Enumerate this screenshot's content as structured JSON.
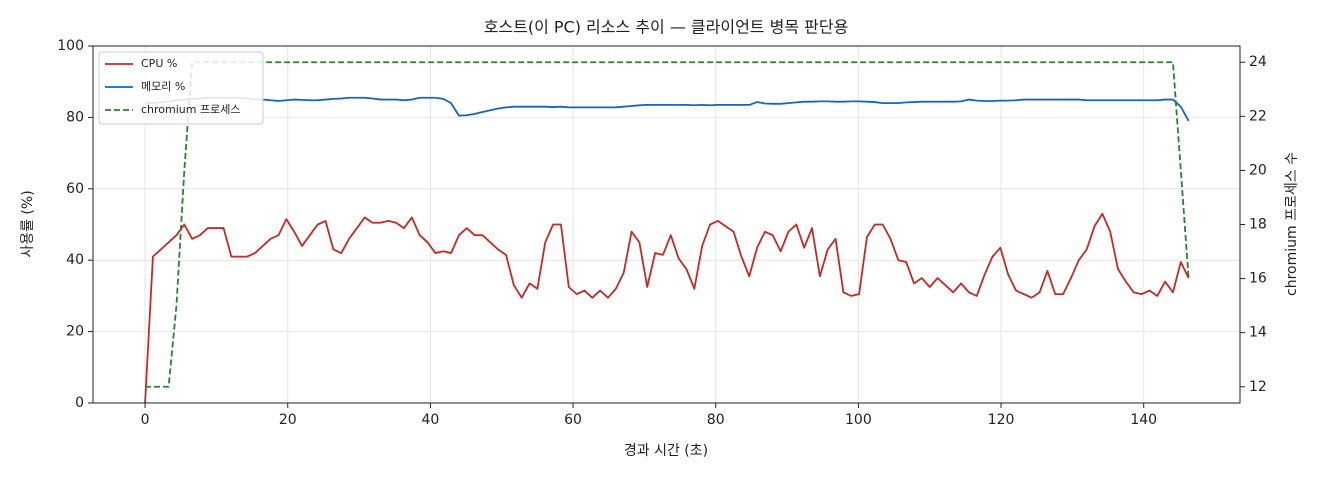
{
  "chart_data": {
    "type": "line",
    "title": "호스트(이 PC) 리소스 추이 — 클라이언트 병목 판단용",
    "xlabel": "경과 시간 (초)",
    "ylabel": "사용률 (%)",
    "y2label": "chromium 프로세스 수",
    "x": [
      0,
      1.1,
      2.2,
      3.3,
      4.4,
      5.5,
      6.6,
      7.7,
      8.8,
      9.9,
      11,
      12.1,
      13.2,
      14.3,
      15.4,
      16.5,
      17.6,
      18.7,
      19.8,
      20.9,
      22,
      23.1,
      24.2,
      25.3,
      26.4,
      27.5,
      28.6,
      29.7,
      30.8,
      31.9,
      33,
      34.1,
      35.2,
      36.3,
      37.4,
      38.5,
      39.6,
      40.7,
      41.8,
      42.9,
      44,
      45.1,
      46.2,
      47.3,
      48.4,
      49.5,
      50.6,
      51.7,
      52.8,
      53.9,
      55,
      56.1,
      57.2,
      58.3,
      59.4,
      60.5,
      61.6,
      62.7,
      63.8,
      64.9,
      66,
      67.1,
      68.2,
      69.3,
      70.4,
      71.5,
      72.6,
      73.7,
      74.8,
      75.9,
      77,
      78.1,
      79.2,
      80.3,
      81.4,
      82.5,
      83.6,
      84.7,
      85.8,
      86.9,
      88,
      89.1,
      90.2,
      91.3,
      92.4,
      93.5,
      94.6,
      95.7,
      96.8,
      97.9,
      99,
      100.1,
      101.2,
      102.3,
      103.4,
      104.5,
      105.6,
      106.7,
      107.8,
      108.9,
      110,
      111.1,
      112.2,
      113.3,
      114.4,
      115.5,
      116.6,
      117.7,
      118.8,
      119.9,
      121,
      122.1,
      123.2,
      124.3,
      125.4,
      126.5,
      127.6,
      128.7,
      129.8,
      130.9,
      132,
      133.1,
      134.2,
      135.3,
      136.4,
      137.5,
      138.6,
      139.7,
      140.8,
      141.9,
      143,
      144.1,
      145.2,
      146.3
    ],
    "series": [
      {
        "name": "CPU %",
        "color": "#c62828",
        "linestyle": "solid",
        "values": [
          0,
          41,
          43,
          45,
          47,
          50,
          46,
          47,
          49,
          49,
          49,
          41,
          41,
          41,
          42,
          44,
          46,
          47,
          51.5,
          48,
          44,
          47,
          50,
          51,
          43,
          42,
          46,
          49,
          52,
          50.5,
          50.5,
          51,
          50.5,
          49,
          52,
          47,
          45,
          42,
          42.5,
          42,
          47,
          49,
          47,
          47,
          45,
          43,
          41.5,
          33,
          29.5,
          33.5,
          32,
          45,
          50,
          50,
          32.5,
          30.5,
          31.5,
          29.5,
          31.5,
          29.5,
          32,
          36.5,
          48,
          45,
          32.5,
          42,
          41.5,
          47,
          40.5,
          37.5,
          32,
          44,
          50,
          51,
          49.5,
          48,
          41,
          35.5,
          43.5,
          48,
          47,
          42.5,
          48,
          50,
          43.5,
          49,
          35.5,
          43,
          46,
          31,
          30,
          30.5,
          46.5,
          50,
          50,
          46,
          40,
          39.5,
          33.5,
          35,
          32.5,
          35,
          33,
          31,
          33.5,
          31,
          30,
          36,
          41,
          43.5,
          36,
          31.5,
          30.5,
          29.5,
          31,
          37,
          30.5,
          30.5,
          35,
          40,
          43,
          49.5,
          53,
          48,
          37.5,
          34,
          31,
          30.5,
          31.5,
          30,
          34,
          31,
          39.5,
          35
        ]
      },
      {
        "name": "메모리 %",
        "color": "#1565c0",
        "linestyle": "solid",
        "values": [
          84,
          84,
          84.2,
          84.5,
          84.8,
          85,
          85.2,
          85.3,
          85.5,
          85.5,
          85.5,
          85.5,
          85.5,
          85.3,
          85,
          85,
          84.8,
          84.6,
          84.8,
          85,
          84.9,
          84.8,
          84.8,
          85,
          85.2,
          85.3,
          85.5,
          85.5,
          85.5,
          85.3,
          85,
          85,
          85,
          84.8,
          85,
          85.5,
          85.5,
          85.5,
          85.2,
          84,
          80.5,
          80.6,
          81,
          81.5,
          82,
          82.5,
          82.8,
          83,
          83,
          83,
          83,
          83,
          82.9,
          83,
          82.8,
          82.8,
          82.8,
          82.8,
          82.8,
          82.8,
          82.8,
          83,
          83.2,
          83.4,
          83.5,
          83.5,
          83.5,
          83.5,
          83.5,
          83.5,
          83.4,
          83.5,
          83.4,
          83.5,
          83.5,
          83.5,
          83.5,
          83.5,
          84.3,
          83.9,
          83.8,
          83.8,
          84,
          84.2,
          84.4,
          84.4,
          84.5,
          84.5,
          84.4,
          84.4,
          84.5,
          84.5,
          84.4,
          84.3,
          84,
          84,
          84,
          84.2,
          84.3,
          84.4,
          84.4,
          84.4,
          84.4,
          84.4,
          84.5,
          85,
          84.7,
          84.6,
          84.6,
          84.7,
          84.7,
          84.8,
          85,
          85,
          85,
          85,
          85,
          85,
          85,
          85,
          84.8,
          84.8,
          84.8,
          84.8,
          84.8,
          84.8,
          84.8,
          84.8,
          84.8,
          84.8,
          85,
          85,
          83,
          79
        ]
      },
      {
        "name": "chromium 프로세스",
        "color": "#2e7d32",
        "linestyle": "dashed",
        "axis": "y2",
        "values": [
          12,
          12,
          12,
          12,
          15,
          20,
          24,
          24,
          24,
          24,
          24,
          24,
          24,
          24,
          24,
          24,
          24,
          24,
          24,
          24,
          24,
          24,
          24,
          24,
          24,
          24,
          24,
          24,
          24,
          24,
          24,
          24,
          24,
          24,
          24,
          24,
          24,
          24,
          24,
          24,
          24,
          24,
          24,
          24,
          24,
          24,
          24,
          24,
          24,
          24,
          24,
          24,
          24,
          24,
          24,
          24,
          24,
          24,
          24,
          24,
          24,
          24,
          24,
          24,
          24,
          24,
          24,
          24,
          24,
          24,
          24,
          24,
          24,
          24,
          24,
          24,
          24,
          24,
          24,
          24,
          24,
          24,
          24,
          24,
          24,
          24,
          24,
          24,
          24,
          24,
          24,
          24,
          24,
          24,
          24,
          24,
          24,
          24,
          24,
          24,
          24,
          24,
          24,
          24,
          24,
          24,
          24,
          24,
          24,
          24,
          24,
          24,
          24,
          24,
          24,
          24,
          24,
          24,
          24,
          24,
          24,
          24,
          24,
          24,
          24,
          24,
          24,
          24,
          24,
          24,
          24,
          24,
          20,
          16
        ]
      }
    ],
    "xlim": [
      -7.3,
      153.5
    ],
    "xticks": [
      0,
      20,
      40,
      60,
      80,
      100,
      120,
      140
    ],
    "ylim": [
      0,
      100
    ],
    "yticks": [
      0,
      20,
      40,
      60,
      80,
      100
    ],
    "y2lim": [
      11.4,
      24.6
    ],
    "y2ticks": [
      12,
      14,
      16,
      18,
      20,
      22,
      24
    ],
    "grid": true,
    "legend": "upper left"
  }
}
